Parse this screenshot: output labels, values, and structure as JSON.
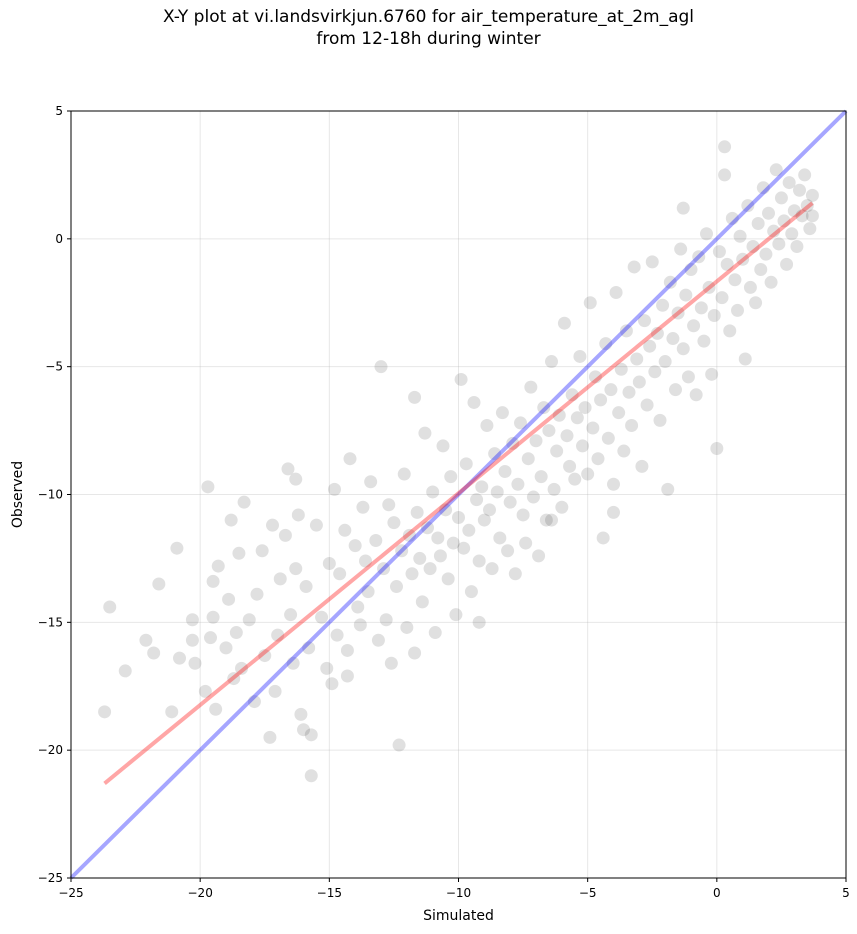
{
  "chart_data": {
    "type": "scatter",
    "title_lines": [
      "X-Y plot at vi.landsvirkjun.6760 for air_temperature_at_2m_agl",
      "from 12-18h during winter"
    ],
    "xlabel": "Simulated",
    "ylabel": "Observed",
    "xlim": [
      -25,
      5
    ],
    "ylim": [
      -25,
      5
    ],
    "xticks": [
      -25,
      -20,
      -15,
      -10,
      -5,
      0,
      5
    ],
    "yticks": [
      -25,
      -20,
      -15,
      -10,
      -5,
      0,
      5
    ],
    "xtick_labels": [
      "−25",
      "−20",
      "−15",
      "−10",
      "−5",
      "0",
      "5"
    ],
    "ytick_labels": [
      "−25",
      "−20",
      "−15",
      "−10",
      "−5",
      "0",
      "5"
    ],
    "grid": true,
    "colors": {
      "points": "#000000",
      "identity_line": "#0000ff",
      "fit_line": "#ff0000"
    },
    "identity_line": {
      "x": [
        -25,
        5
      ],
      "y": [
        -25,
        5
      ]
    },
    "fit_line": {
      "x": [
        -23.7,
        3.7
      ],
      "y": [
        -21.3,
        1.4
      ]
    },
    "points": [
      [
        -23.7,
        -18.5
      ],
      [
        -23.5,
        -14.4
      ],
      [
        -22.9,
        -16.9
      ],
      [
        -22.1,
        -15.7
      ],
      [
        -21.8,
        -16.2
      ],
      [
        -21.6,
        -13.5
      ],
      [
        -21.1,
        -18.5
      ],
      [
        -20.9,
        -12.1
      ],
      [
        -20.8,
        -16.4
      ],
      [
        -20.3,
        -15.7
      ],
      [
        -20.3,
        -14.9
      ],
      [
        -20.2,
        -16.6
      ],
      [
        -19.8,
        -17.7
      ],
      [
        -19.7,
        -9.7
      ],
      [
        -19.6,
        -15.6
      ],
      [
        -19.5,
        -14.8
      ],
      [
        -19.5,
        -13.4
      ],
      [
        -19.4,
        -18.4
      ],
      [
        -19.3,
        -12.8
      ],
      [
        -19.0,
        -16.0
      ],
      [
        -18.9,
        -14.1
      ],
      [
        -18.8,
        -11.0
      ],
      [
        -18.7,
        -17.2
      ],
      [
        -18.6,
        -15.4
      ],
      [
        -18.5,
        -12.3
      ],
      [
        -18.4,
        -16.8
      ],
      [
        -18.3,
        -10.3
      ],
      [
        -18.1,
        -14.9
      ],
      [
        -17.9,
        -18.1
      ],
      [
        -17.8,
        -13.9
      ],
      [
        -17.6,
        -12.2
      ],
      [
        -17.5,
        -16.3
      ],
      [
        -17.3,
        -19.5
      ],
      [
        -17.2,
        -11.2
      ],
      [
        -17.1,
        -17.7
      ],
      [
        -17.0,
        -15.5
      ],
      [
        -16.9,
        -13.3
      ],
      [
        -16.7,
        -11.6
      ],
      [
        -16.6,
        -9.0
      ],
      [
        -16.5,
        -14.7
      ],
      [
        -16.4,
        -16.6
      ],
      [
        -16.3,
        -12.9
      ],
      [
        -16.2,
        -10.8
      ],
      [
        -16.1,
        -18.6
      ],
      [
        -16.0,
        -19.2
      ],
      [
        -15.9,
        -13.6
      ],
      [
        -15.8,
        -16.0
      ],
      [
        -15.7,
        -21.0
      ],
      [
        -15.7,
        -19.4
      ],
      [
        -15.5,
        -11.2
      ],
      [
        -15.3,
        -14.8
      ],
      [
        -15.1,
        -16.8
      ],
      [
        -15.0,
        -12.7
      ],
      [
        -14.9,
        -17.4
      ],
      [
        -14.8,
        -9.8
      ],
      [
        -14.7,
        -15.5
      ],
      [
        -14.6,
        -13.1
      ],
      [
        -14.4,
        -11.4
      ],
      [
        -14.3,
        -16.1
      ],
      [
        -14.2,
        -8.6
      ],
      [
        -14.0,
        -12.0
      ],
      [
        -13.9,
        -14.4
      ],
      [
        -13.8,
        -15.1
      ],
      [
        -13.7,
        -10.5
      ],
      [
        -13.6,
        -12.6
      ],
      [
        -13.5,
        -13.8
      ],
      [
        -13.4,
        -9.5
      ],
      [
        -13.2,
        -11.8
      ],
      [
        -13.1,
        -15.7
      ],
      [
        -13.0,
        -5.0
      ],
      [
        -12.9,
        -12.9
      ],
      [
        -12.8,
        -14.9
      ],
      [
        -12.7,
        -10.4
      ],
      [
        -12.6,
        -16.6
      ],
      [
        -12.5,
        -11.1
      ],
      [
        -12.4,
        -13.6
      ],
      [
        -12.3,
        -19.8
      ],
      [
        -12.2,
        -12.2
      ],
      [
        -12.1,
        -9.2
      ],
      [
        -12.0,
        -15.2
      ],
      [
        -11.9,
        -11.6
      ],
      [
        -11.8,
        -13.1
      ],
      [
        -11.7,
        -6.2
      ],
      [
        -11.6,
        -10.7
      ],
      [
        -11.5,
        -12.5
      ],
      [
        -11.4,
        -14.2
      ],
      [
        -11.3,
        -7.6
      ],
      [
        -11.2,
        -11.3
      ],
      [
        -11.1,
        -12.9
      ],
      [
        -11.0,
        -9.9
      ],
      [
        -10.9,
        -15.4
      ],
      [
        -10.8,
        -11.7
      ],
      [
        -10.7,
        -12.4
      ],
      [
        -10.6,
        -8.1
      ],
      [
        -10.5,
        -10.6
      ],
      [
        -10.4,
        -13.3
      ],
      [
        -10.3,
        -9.3
      ],
      [
        -10.2,
        -11.9
      ],
      [
        -10.1,
        -14.7
      ],
      [
        -10.0,
        -10.9
      ],
      [
        -9.9,
        -5.5
      ],
      [
        -9.8,
        -12.1
      ],
      [
        -9.7,
        -8.8
      ],
      [
        -9.6,
        -11.4
      ],
      [
        -9.5,
        -13.8
      ],
      [
        -9.4,
        -6.4
      ],
      [
        -9.3,
        -10.2
      ],
      [
        -9.2,
        -12.6
      ],
      [
        -9.1,
        -9.7
      ],
      [
        -9.0,
        -11.0
      ],
      [
        -8.9,
        -7.3
      ],
      [
        -8.8,
        -10.6
      ],
      [
        -8.7,
        -12.9
      ],
      [
        -8.6,
        -8.4
      ],
      [
        -8.5,
        -9.9
      ],
      [
        -8.4,
        -11.7
      ],
      [
        -8.3,
        -6.8
      ],
      [
        -8.2,
        -9.1
      ],
      [
        -8.1,
        -12.2
      ],
      [
        -8.0,
        -10.3
      ],
      [
        -7.9,
        -8.0
      ],
      [
        -7.8,
        -13.1
      ],
      [
        -7.7,
        -9.6
      ],
      [
        -7.6,
        -7.2
      ],
      [
        -7.5,
        -10.8
      ],
      [
        -7.4,
        -11.9
      ],
      [
        -7.3,
        -8.6
      ],
      [
        -7.2,
        -5.8
      ],
      [
        -7.1,
        -10.1
      ],
      [
        -7.0,
        -7.9
      ],
      [
        -6.9,
        -12.4
      ],
      [
        -6.8,
        -9.3
      ],
      [
        -6.7,
        -6.6
      ],
      [
        -6.6,
        -11.0
      ],
      [
        -6.5,
        -7.5
      ],
      [
        -6.4,
        -4.8
      ],
      [
        -6.3,
        -9.8
      ],
      [
        -6.2,
        -8.3
      ],
      [
        -6.1,
        -6.9
      ],
      [
        -6.0,
        -10.5
      ],
      [
        -5.9,
        -3.3
      ],
      [
        -5.8,
        -7.7
      ],
      [
        -5.7,
        -8.9
      ],
      [
        -5.6,
        -6.1
      ],
      [
        -5.5,
        -9.4
      ],
      [
        -5.4,
        -7.0
      ],
      [
        -5.3,
        -4.6
      ],
      [
        -5.2,
        -8.1
      ],
      [
        -5.1,
        -6.6
      ],
      [
        -5.0,
        -9.2
      ],
      [
        -4.9,
        -2.5
      ],
      [
        -4.8,
        -7.4
      ],
      [
        -4.7,
        -5.4
      ],
      [
        -4.6,
        -8.6
      ],
      [
        -4.5,
        -6.3
      ],
      [
        -4.4,
        -11.7
      ],
      [
        -4.3,
        -4.1
      ],
      [
        -4.2,
        -7.8
      ],
      [
        -4.1,
        -5.9
      ],
      [
        -4.0,
        -9.6
      ],
      [
        -3.9,
        -2.1
      ],
      [
        -3.8,
        -6.8
      ],
      [
        -3.7,
        -5.1
      ],
      [
        -3.6,
        -8.3
      ],
      [
        -3.5,
        -3.6
      ],
      [
        -3.4,
        -6.0
      ],
      [
        -3.3,
        -7.3
      ],
      [
        -3.2,
        -1.1
      ],
      [
        -3.1,
        -4.7
      ],
      [
        -3.0,
        -5.6
      ],
      [
        -2.9,
        -8.9
      ],
      [
        -2.8,
        -3.2
      ],
      [
        -2.7,
        -6.5
      ],
      [
        -2.6,
        -4.2
      ],
      [
        -2.5,
        -0.9
      ],
      [
        -2.4,
        -5.2
      ],
      [
        -2.3,
        -3.7
      ],
      [
        -2.2,
        -7.1
      ],
      [
        -2.1,
        -2.6
      ],
      [
        -2.0,
        -4.8
      ],
      [
        -1.9,
        -9.8
      ],
      [
        -1.8,
        -1.7
      ],
      [
        -1.7,
        -3.9
      ],
      [
        -1.6,
        -5.9
      ],
      [
        -1.5,
        -2.9
      ],
      [
        -1.4,
        -0.4
      ],
      [
        -1.3,
        -4.3
      ],
      [
        -1.2,
        -2.2
      ],
      [
        -1.1,
        -5.4
      ],
      [
        -1.0,
        -1.2
      ],
      [
        -0.9,
        -3.4
      ],
      [
        -0.8,
        -6.1
      ],
      [
        -0.7,
        -0.7
      ],
      [
        -0.6,
        -2.7
      ],
      [
        -0.5,
        -4.0
      ],
      [
        -0.4,
        0.2
      ],
      [
        -0.3,
        -1.9
      ],
      [
        -0.2,
        -5.3
      ],
      [
        -0.1,
        -3.0
      ],
      [
        0.0,
        -8.2
      ],
      [
        0.1,
        -0.5
      ],
      [
        0.2,
        -2.3
      ],
      [
        0.3,
        2.5
      ],
      [
        0.4,
        -1.0
      ],
      [
        0.5,
        -3.6
      ],
      [
        0.6,
        0.8
      ],
      [
        0.7,
        -1.6
      ],
      [
        0.8,
        -2.8
      ],
      [
        0.9,
        0.1
      ],
      [
        1.0,
        -0.8
      ],
      [
        1.1,
        -4.7
      ],
      [
        1.2,
        1.3
      ],
      [
        1.3,
        -1.9
      ],
      [
        1.4,
        -0.3
      ],
      [
        1.5,
        -2.5
      ],
      [
        1.6,
        0.6
      ],
      [
        1.7,
        -1.2
      ],
      [
        1.8,
        2.0
      ],
      [
        1.9,
        -0.6
      ],
      [
        2.0,
        1.0
      ],
      [
        2.1,
        -1.7
      ],
      [
        2.2,
        0.3
      ],
      [
        2.3,
        2.7
      ],
      [
        2.4,
        -0.2
      ],
      [
        2.5,
        1.6
      ],
      [
        2.6,
        0.7
      ],
      [
        2.7,
        -1.0
      ],
      [
        2.8,
        2.2
      ],
      [
        2.9,
        0.2
      ],
      [
        3.0,
        1.1
      ],
      [
        3.1,
        -0.3
      ],
      [
        3.2,
        1.9
      ],
      [
        3.3,
        0.9
      ],
      [
        3.4,
        2.5
      ],
      [
        3.5,
        1.3
      ],
      [
        3.6,
        0.4
      ],
      [
        3.7,
        1.7
      ],
      [
        3.7,
        0.9
      ],
      [
        0.3,
        3.6
      ],
      [
        -1.3,
        1.2
      ],
      [
        -9.2,
        -15.0
      ],
      [
        -16.3,
        -9.4
      ],
      [
        -14.3,
        -17.1
      ],
      [
        -11.7,
        -16.2
      ],
      [
        -6.4,
        -11.0
      ],
      [
        -4.0,
        -10.7
      ]
    ]
  }
}
